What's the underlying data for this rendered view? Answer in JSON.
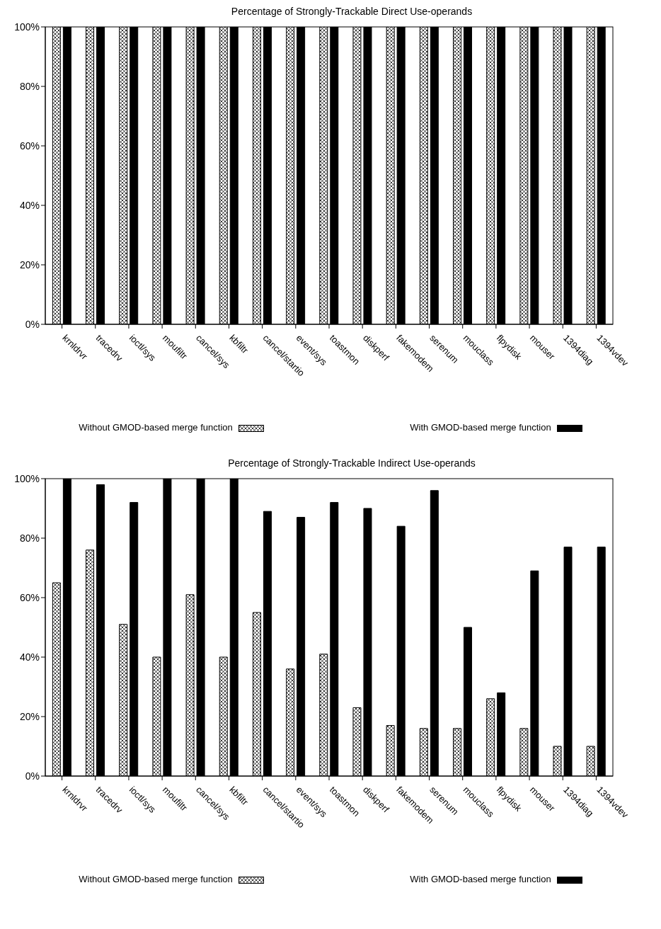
{
  "chart_data": [
    {
      "type": "bar",
      "title": "Percentage of Strongly-Trackable Direct Use-operands",
      "categories": [
        "krnldrvr",
        "tracedrv",
        "ioctl/sys",
        "moufiltr",
        "cancel/sys",
        "kbfiltr",
        "cancel/startio",
        "event/sys",
        "toastmon",
        "diskperf",
        "fakemodem",
        "serenum",
        "mouclass",
        "flpydisk",
        "mouser",
        "1394diag",
        "1394vdev"
      ],
      "series": [
        {
          "name": "Without GMOD-based merge function",
          "color": "#000000",
          "values": [
            100,
            100,
            100,
            100,
            100,
            100,
            100,
            100,
            100,
            100,
            100,
            100,
            100,
            100,
            100,
            100,
            100
          ]
        },
        {
          "name": "With GMOD-based merge function",
          "color": "#000000",
          "values": [
            100,
            100,
            100,
            100,
            100,
            100,
            100,
            100,
            100,
            100,
            100,
            100,
            100,
            100,
            100,
            100,
            100
          ]
        }
      ],
      "ylim": [
        0,
        100
      ],
      "yticks": [
        {
          "value": 0,
          "label": "0%"
        },
        {
          "value": 20,
          "label": "20%"
        },
        {
          "value": 40,
          "label": "40%"
        },
        {
          "value": 60,
          "label": "60%"
        },
        {
          "value": 80,
          "label": "80%"
        },
        {
          "value": 100,
          "label": "100%"
        }
      ],
      "grid": false,
      "legend": "bottom"
    },
    {
      "type": "bar",
      "title": "Percentage of Strongly-Trackable Indirect Use-operands",
      "categories": [
        "krnldrvr",
        "tracedrv",
        "ioctl/sys",
        "moufiltr",
        "cancel/sys",
        "kbfiltr",
        "cancel/startio",
        "event/sys",
        "toastmon",
        "diskperf",
        "fakemodem",
        "serenum",
        "mouclass",
        "flpydisk",
        "mouser",
        "1394diag",
        "1394vdev"
      ],
      "series": [
        {
          "name": "Without GMOD-based merge function",
          "color": "#000000",
          "values": [
            65,
            76,
            51,
            40,
            61,
            40,
            55,
            36,
            41,
            23,
            17,
            16,
            16,
            26,
            16,
            10,
            10
          ]
        },
        {
          "name": "With GMOD-based merge function",
          "color": "#000000",
          "values": [
            100,
            98,
            92,
            100,
            100,
            100,
            89,
            87,
            92,
            90,
            84,
            96,
            50,
            28,
            69,
            77,
            77
          ]
        }
      ],
      "ylim": [
        0,
        100
      ],
      "yticks": [
        {
          "value": 0,
          "label": "0%"
        },
        {
          "value": 20,
          "label": "20%"
        },
        {
          "value": 40,
          "label": "40%"
        },
        {
          "value": 60,
          "label": "60%"
        },
        {
          "value": 80,
          "label": "80%"
        },
        {
          "value": 100,
          "label": "100%"
        }
      ],
      "grid": false,
      "legend": "bottom"
    }
  ]
}
